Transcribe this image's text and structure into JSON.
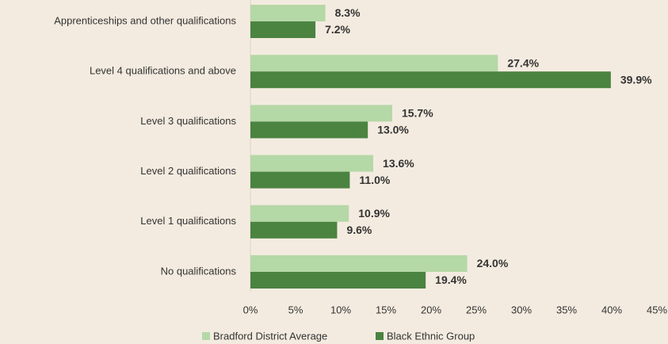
{
  "chart_data": {
    "type": "bar",
    "orientation": "horizontal",
    "categories": [
      "Apprenticeships and other qualifications",
      "Level 4 qualifications and above",
      "Level 3 qualifications",
      "Level 2 qualifications",
      "Level 1 qualifications",
      "No qualifications"
    ],
    "series": [
      {
        "name": "Bradford District Average",
        "color": "#b5d8a7",
        "values": [
          8.3,
          27.4,
          15.7,
          13.6,
          10.9,
          24.0
        ],
        "value_labels": [
          "8.3%",
          "27.4%",
          "15.7%",
          "13.6%",
          "10.9%",
          "24.0%"
        ]
      },
      {
        "name": "Black Ethnic Group",
        "color": "#4b8341",
        "values": [
          7.2,
          39.9,
          13.0,
          11.0,
          9.6,
          19.4
        ],
        "value_labels": [
          "7.2%",
          "39.9%",
          "13.0%",
          "11.0%",
          "9.6%",
          "19.4%"
        ]
      }
    ],
    "xlim": [
      0,
      45
    ],
    "xticks": [
      {
        "value": 0,
        "label": "0%"
      },
      {
        "value": 5,
        "label": "5%"
      },
      {
        "value": 10,
        "label": "10%"
      },
      {
        "value": 15,
        "label": "15%"
      },
      {
        "value": 20,
        "label": "20%"
      },
      {
        "value": 25,
        "label": "25%"
      },
      {
        "value": 30,
        "label": "30%"
      },
      {
        "value": 35,
        "label": "35%"
      },
      {
        "value": 40,
        "label": "40%"
      },
      {
        "value": 45,
        "label": "45%"
      }
    ],
    "grid": false,
    "legend": "bottom"
  }
}
